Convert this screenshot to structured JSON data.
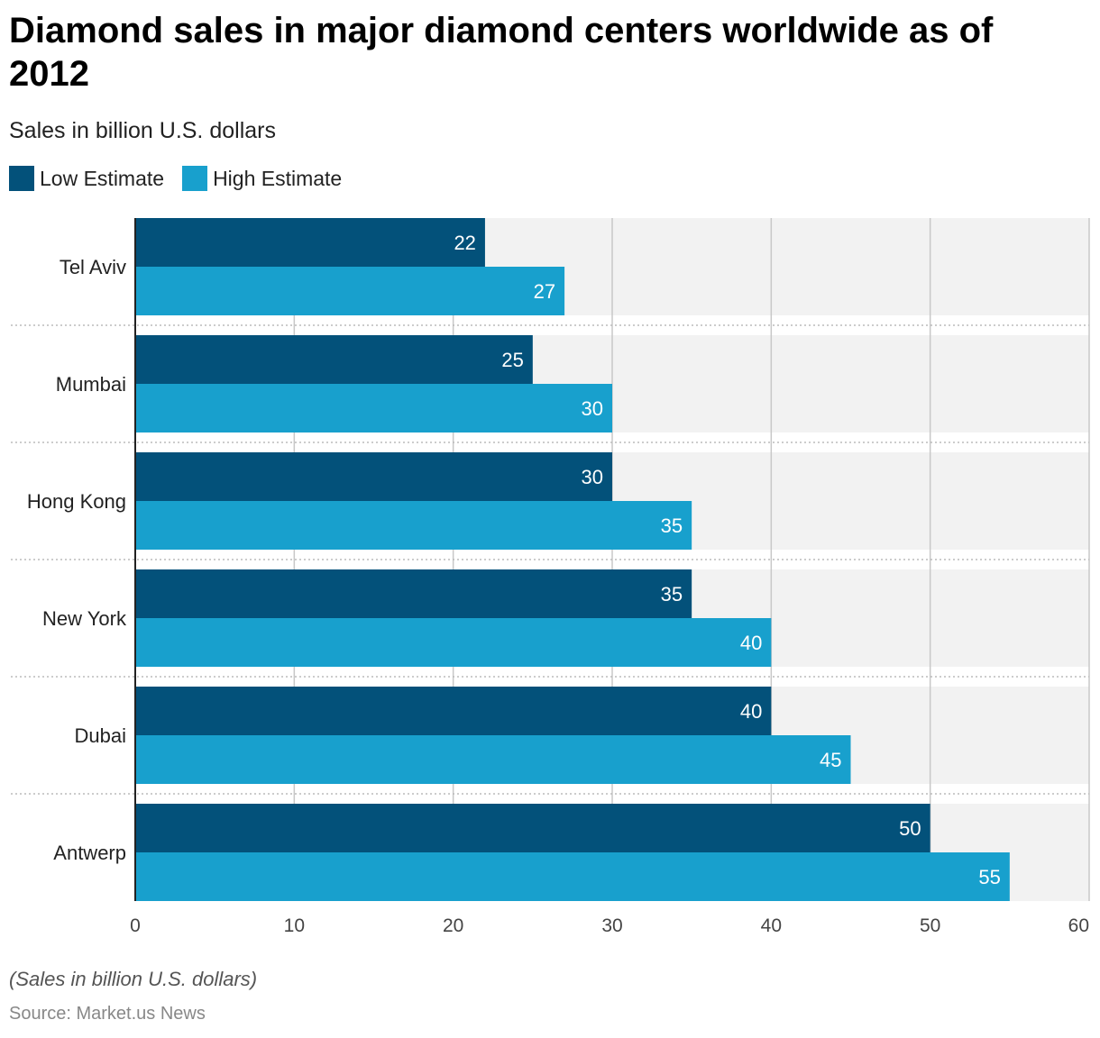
{
  "chart_data": {
    "type": "bar",
    "orientation": "horizontal",
    "title": "Diamond sales in major diamond centers worldwide as of 2012",
    "subtitle": "Sales in billion U.S. dollars",
    "categories": [
      "Tel Aviv",
      "Mumbai",
      "Hong Kong",
      "New York",
      "Dubai",
      "Antwerp"
    ],
    "series": [
      {
        "name": "Low Estimate",
        "color": "#03517a",
        "values": [
          22,
          25,
          30,
          35,
          40,
          50
        ]
      },
      {
        "name": "High Estimate",
        "color": "#18a0cd",
        "values": [
          27,
          30,
          35,
          40,
          45,
          55
        ]
      }
    ],
    "xlim": [
      0,
      60
    ],
    "xticks": [
      0,
      10,
      20,
      30,
      40,
      50,
      60
    ],
    "grid": true,
    "legend_position": "top-left",
    "data_labels": true
  },
  "footer": {
    "note": "(Sales in billion U.S. dollars)",
    "source": "Source: Market.us News"
  },
  "colors": {
    "band_background": "#f2f2f2",
    "gridline": "#c8c8c8",
    "axis": "#222222"
  }
}
